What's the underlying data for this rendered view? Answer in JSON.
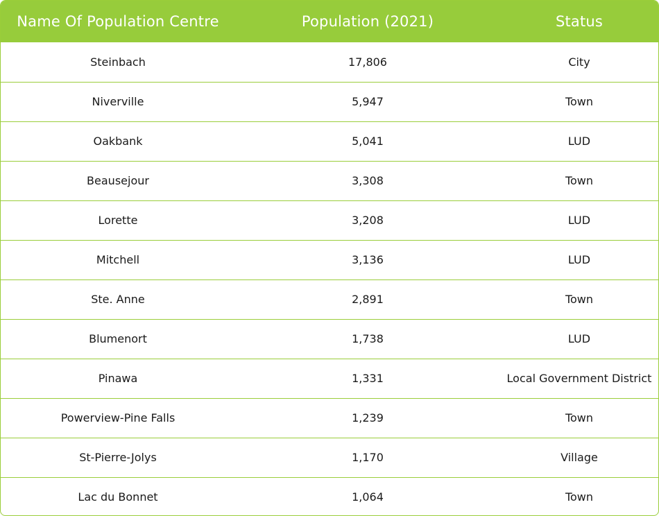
{
  "table": {
    "headers": [
      "Name Of Population Centre",
      "Population (2021)",
      "Status"
    ],
    "rows": [
      [
        "Steinbach",
        "17,806",
        "City"
      ],
      [
        "Niverville",
        "5,947",
        "Town"
      ],
      [
        "Oakbank",
        "5,041",
        "LUD"
      ],
      [
        "Beausejour",
        "3,308",
        "Town"
      ],
      [
        "Lorette",
        "3,208",
        "LUD"
      ],
      [
        "Mitchell",
        "3,136",
        "LUD"
      ],
      [
        "Ste. Anne",
        "2,891",
        "Town"
      ],
      [
        "Blumenort",
        "1,738",
        "LUD"
      ],
      [
        "Pinawa",
        "1,331",
        "Local Government District"
      ],
      [
        "Powerview-Pine Falls",
        "1,239",
        "Town"
      ],
      [
        "St-Pierre-Jolys",
        "1,170",
        "Village"
      ],
      [
        "Lac du Bonnet",
        "1,064",
        "Town"
      ]
    ]
  },
  "colors": {
    "header_bg": "#97cc3b",
    "border": "#9acd3a",
    "header_text": "#ffffff",
    "cell_text": "#1a1a1a"
  }
}
